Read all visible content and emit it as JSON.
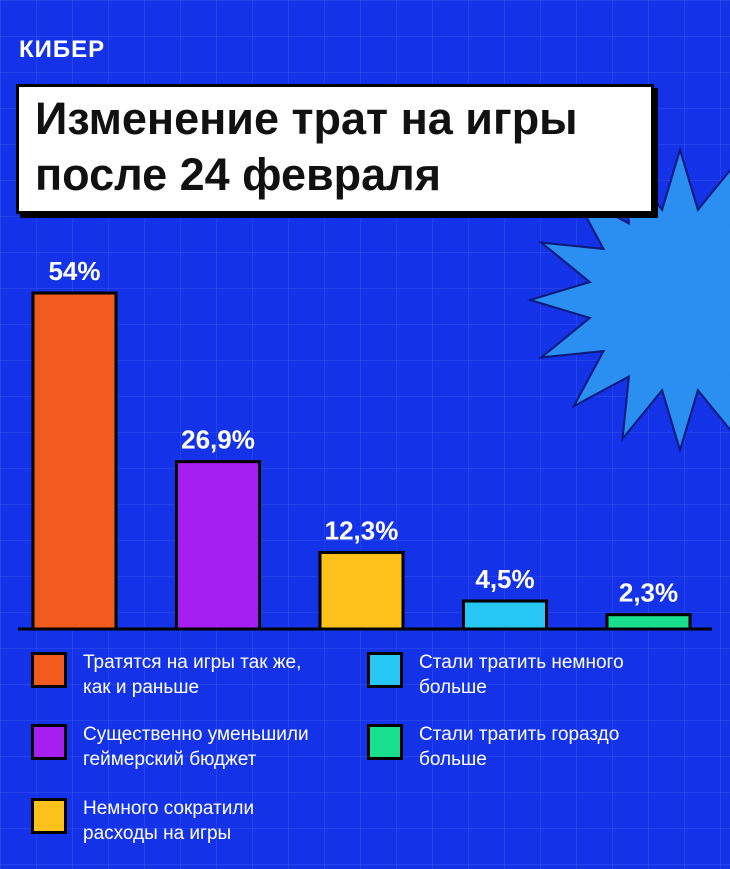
{
  "brand": "КИБЕР",
  "title": {
    "line1": "Изменение трат на игры",
    "line2": "после 24 февраля"
  },
  "colors": {
    "background": "#1433e8",
    "starburst": "#2a8ff0"
  },
  "chart_data": {
    "type": "bar",
    "title": "Изменение трат на игры после 24 февраля",
    "xlabel": "",
    "ylabel": "",
    "ylim": [
      0,
      60
    ],
    "categories": [
      "Тратятся на игры так же, как и раньше",
      "Существенно уменьшили геймерский бюджет",
      "Немного сократили расходы на игры",
      "Стали тратить немного больше",
      "Стали тратить гораздо больше"
    ],
    "values": [
      54,
      26.9,
      12.3,
      4.5,
      2.3
    ],
    "value_labels": [
      "54%",
      "26,9%",
      "12,3%",
      "4,5%",
      "2,3%"
    ],
    "colors": [
      "#f25a1e",
      "#a41ff0",
      "#fcc21b",
      "#27c7f5",
      "#19e08c"
    ]
  },
  "legend": [
    {
      "text_line1": "Тратятся на игры так же,",
      "text_line2": "как и раньше",
      "color": "#f25a1e"
    },
    {
      "text_line1": "Существенно уменьшили",
      "text_line2": "геймерский бюджет",
      "color": "#a41ff0"
    },
    {
      "text_line1": "Немного сократили",
      "text_line2": "расходы на игры",
      "color": "#fcc21b"
    },
    {
      "text_line1": "Стали тратить немного",
      "text_line2": "больше",
      "color": "#27c7f5"
    },
    {
      "text_line1": "Стали тратить гораздо",
      "text_line2": "больше",
      "color": "#19e08c"
    }
  ]
}
